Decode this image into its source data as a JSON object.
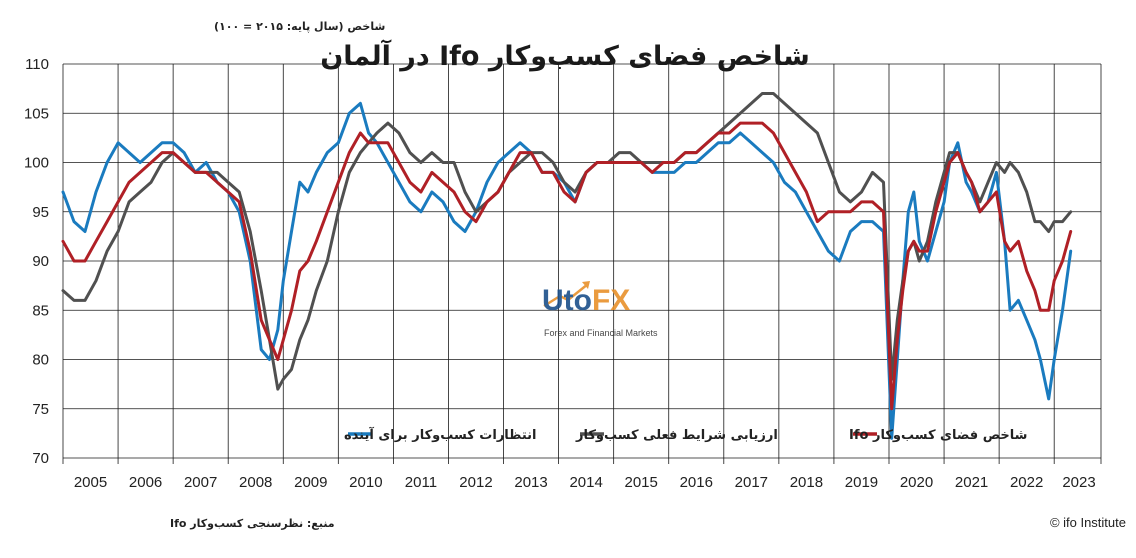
{
  "chart_data": {
    "type": "line",
    "title": "شاخص فضای کسب‌وکار Ifo در آلمان",
    "unit_label": "شاخص (سال پایه: ۲۰۱۵ = ۱۰۰)",
    "ylim": [
      70,
      110
    ],
    "yticks": [
      "70",
      "75",
      "80",
      "85",
      "90",
      "95",
      "100",
      "105",
      "110"
    ],
    "ytick_values": [
      70,
      75,
      80,
      85,
      90,
      95,
      100,
      105,
      110
    ],
    "xlim": [
      2005,
      2023.85
    ],
    "year_labels": [
      "2005",
      "2006",
      "2007",
      "2008",
      "2009",
      "2010",
      "2011",
      "2012",
      "2013",
      "2014",
      "2015",
      "2016",
      "2017",
      "2018",
      "2019",
      "2020",
      "2021",
      "2022",
      "2023"
    ],
    "grid": true,
    "legend_position": "bottom",
    "source": "منبع: نظرسنجی کسب‌وکار Ifo",
    "copyright": "© ifo Institute",
    "watermark": {
      "main": "Uto",
      "accent": "FX",
      "sub": "Forex and Financial Markets"
    },
    "colors": {
      "expectations": "#1a7bbf",
      "current": "#505050",
      "climate": "#b02026"
    },
    "series": [
      {
        "key": "expectations",
        "name": "انتظارات کسب‌وکار برای آینده",
        "x": [
          2005.0,
          2005.2,
          2005.4,
          2005.6,
          2005.8,
          2006.0,
          2006.2,
          2006.4,
          2006.6,
          2006.8,
          2007.0,
          2007.2,
          2007.4,
          2007.6,
          2007.8,
          2008.0,
          2008.2,
          2008.4,
          2008.6,
          2008.75,
          2008.9,
          2009.0,
          2009.15,
          2009.3,
          2009.45,
          2009.6,
          2009.8,
          2010.0,
          2010.2,
          2010.4,
          2010.55,
          2010.7,
          2010.9,
          2011.1,
          2011.3,
          2011.5,
          2011.7,
          2011.9,
          2012.1,
          2012.3,
          2012.5,
          2012.7,
          2012.9,
          2013.1,
          2013.3,
          2013.5,
          2013.7,
          2013.9,
          2014.1,
          2014.3,
          2014.5,
          2014.7,
          2014.9,
          2015.1,
          2015.3,
          2015.5,
          2015.7,
          2015.9,
          2016.1,
          2016.3,
          2016.5,
          2016.7,
          2016.9,
          2017.1,
          2017.3,
          2017.5,
          2017.7,
          2017.9,
          2018.1,
          2018.3,
          2018.5,
          2018.7,
          2018.9,
          2019.1,
          2019.3,
          2019.5,
          2019.7,
          2019.9,
          2020.05,
          2020.15,
          2020.25,
          2020.35,
          2020.45,
          2020.55,
          2020.7,
          2020.85,
          2021.0,
          2021.1,
          2021.25,
          2021.4,
          2021.5,
          2021.65,
          2021.8,
          2021.95,
          2022.1,
          2022.2,
          2022.35,
          2022.5,
          2022.65,
          2022.75,
          2022.9,
          2023.0,
          2023.15,
          2023.3
        ],
        "values": [
          97,
          94,
          93,
          97,
          100,
          102,
          101,
          100,
          101,
          102,
          102,
          101,
          99,
          100,
          98,
          97,
          95,
          90,
          81,
          80,
          83,
          88,
          93,
          98,
          97,
          99,
          101,
          102,
          105,
          106,
          103,
          102,
          100,
          98,
          96,
          95,
          97,
          96,
          94,
          93,
          95,
          98,
          100,
          101,
          102,
          101,
          99,
          99,
          98,
          96,
          99,
          100,
          100,
          100,
          100,
          100,
          99,
          99,
          99,
          100,
          100,
          101,
          102,
          102,
          103,
          102,
          101,
          100,
          98,
          97,
          95,
          93,
          91,
          90,
          93,
          94,
          94,
          93,
          72,
          80,
          88,
          95,
          97,
          92,
          90,
          93,
          96,
          100,
          102,
          98,
          97,
          95,
          96,
          99,
          92,
          85,
          86,
          84,
          82,
          80,
          76,
          80,
          85,
          91
        ]
      },
      {
        "key": "current",
        "name": "ارزیابی شرایط فعلی کسب‌وکار",
        "x": [
          2005.0,
          2005.2,
          2005.4,
          2005.6,
          2005.8,
          2006.0,
          2006.2,
          2006.4,
          2006.6,
          2006.8,
          2007.0,
          2007.2,
          2007.4,
          2007.6,
          2007.8,
          2008.0,
          2008.2,
          2008.4,
          2008.6,
          2008.75,
          2008.9,
          2009.0,
          2009.15,
          2009.3,
          2009.45,
          2009.6,
          2009.8,
          2010.0,
          2010.2,
          2010.4,
          2010.55,
          2010.7,
          2010.9,
          2011.1,
          2011.3,
          2011.5,
          2011.7,
          2011.9,
          2012.1,
          2012.3,
          2012.5,
          2012.7,
          2012.9,
          2013.1,
          2013.3,
          2013.5,
          2013.7,
          2013.9,
          2014.1,
          2014.3,
          2014.5,
          2014.7,
          2014.9,
          2015.1,
          2015.3,
          2015.5,
          2015.7,
          2015.9,
          2016.1,
          2016.3,
          2016.5,
          2016.7,
          2016.9,
          2017.1,
          2017.3,
          2017.5,
          2017.7,
          2017.9,
          2018.1,
          2018.3,
          2018.5,
          2018.7,
          2018.9,
          2019.1,
          2019.3,
          2019.5,
          2019.7,
          2019.9,
          2020.05,
          2020.15,
          2020.25,
          2020.35,
          2020.45,
          2020.55,
          2020.7,
          2020.85,
          2021.0,
          2021.1,
          2021.25,
          2021.4,
          2021.5,
          2021.65,
          2021.8,
          2021.95,
          2022.1,
          2022.2,
          2022.35,
          2022.5,
          2022.65,
          2022.75,
          2022.9,
          2023.0,
          2023.15,
          2023.3
        ],
        "values": [
          87,
          86,
          86,
          88,
          91,
          93,
          96,
          97,
          98,
          100,
          101,
          100,
          99,
          99,
          99,
          98,
          97,
          93,
          87,
          82,
          77,
          78,
          79,
          82,
          84,
          87,
          90,
          95,
          99,
          101,
          102,
          103,
          104,
          103,
          101,
          100,
          101,
          100,
          100,
          97,
          95,
          96,
          97,
          99,
          100,
          101,
          101,
          100,
          98,
          97,
          99,
          100,
          100,
          101,
          101,
          100,
          100,
          100,
          100,
          101,
          101,
          102,
          103,
          104,
          105,
          106,
          107,
          107,
          106,
          105,
          104,
          103,
          100,
          97,
          96,
          97,
          99,
          98,
          78,
          84,
          88,
          91,
          92,
          90,
          92,
          96,
          99,
          101,
          101,
          99,
          98,
          96,
          98,
          100,
          99,
          100,
          99,
          97,
          94,
          94,
          93,
          94,
          94,
          95
        ]
      },
      {
        "key": "climate",
        "name": "شاخص فضای کسب‌وکار Ifo",
        "x": [
          2005.0,
          2005.2,
          2005.4,
          2005.6,
          2005.8,
          2006.0,
          2006.2,
          2006.4,
          2006.6,
          2006.8,
          2007.0,
          2007.2,
          2007.4,
          2007.6,
          2007.8,
          2008.0,
          2008.2,
          2008.4,
          2008.6,
          2008.75,
          2008.9,
          2009.0,
          2009.15,
          2009.3,
          2009.45,
          2009.6,
          2009.8,
          2010.0,
          2010.2,
          2010.4,
          2010.55,
          2010.7,
          2010.9,
          2011.1,
          2011.3,
          2011.5,
          2011.7,
          2011.9,
          2012.1,
          2012.3,
          2012.5,
          2012.7,
          2012.9,
          2013.1,
          2013.3,
          2013.5,
          2013.7,
          2013.9,
          2014.1,
          2014.3,
          2014.5,
          2014.7,
          2014.9,
          2015.1,
          2015.3,
          2015.5,
          2015.7,
          2015.9,
          2016.1,
          2016.3,
          2016.5,
          2016.7,
          2016.9,
          2017.1,
          2017.3,
          2017.5,
          2017.7,
          2017.9,
          2018.1,
          2018.3,
          2018.5,
          2018.7,
          2018.9,
          2019.1,
          2019.3,
          2019.5,
          2019.7,
          2019.9,
          2020.05,
          2020.15,
          2020.25,
          2020.35,
          2020.45,
          2020.55,
          2020.7,
          2020.85,
          2021.0,
          2021.1,
          2021.25,
          2021.4,
          2021.5,
          2021.65,
          2021.8,
          2021.95,
          2022.1,
          2022.2,
          2022.35,
          2022.5,
          2022.65,
          2022.75,
          2022.9,
          2023.0,
          2023.15,
          2023.3
        ],
        "values": [
          92,
          90,
          90,
          92,
          94,
          96,
          98,
          99,
          100,
          101,
          101,
          100,
          99,
          99,
          98,
          97,
          96,
          91,
          84,
          82,
          80,
          82,
          85,
          89,
          90,
          92,
          95,
          98,
          101,
          103,
          102,
          102,
          102,
          100,
          98,
          97,
          99,
          98,
          97,
          95,
          94,
          96,
          97,
          99,
          101,
          101,
          99,
          99,
          97,
          96,
          99,
          100,
          100,
          100,
          100,
          100,
          99,
          100,
          100,
          101,
          101,
          102,
          103,
          103,
          104,
          104,
          104,
          103,
          101,
          99,
          97,
          94,
          95,
          95,
          95,
          96,
          96,
          95,
          75,
          82,
          87,
          91,
          92,
          91,
          91,
          95,
          98,
          100,
          101,
          99,
          98,
          95,
          96,
          97,
          92,
          91,
          92,
          89,
          87,
          85,
          85,
          88,
          90,
          93
        ]
      }
    ]
  }
}
